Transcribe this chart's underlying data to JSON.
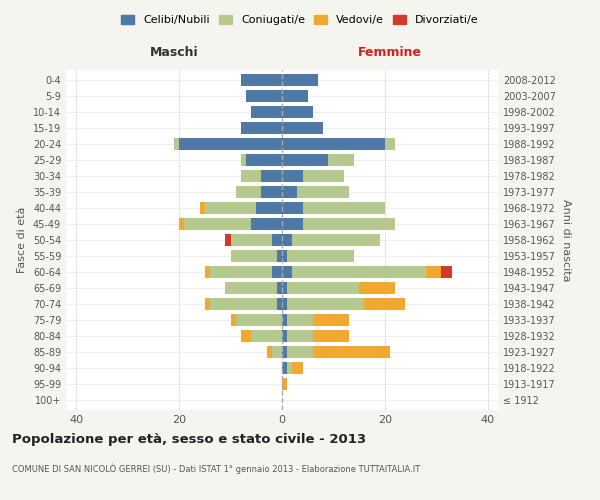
{
  "age_groups": [
    "100+",
    "95-99",
    "90-94",
    "85-89",
    "80-84",
    "75-79",
    "70-74",
    "65-69",
    "60-64",
    "55-59",
    "50-54",
    "45-49",
    "40-44",
    "35-39",
    "30-34",
    "25-29",
    "20-24",
    "15-19",
    "10-14",
    "5-9",
    "0-4"
  ],
  "birth_years": [
    "≤ 1912",
    "1913-1917",
    "1918-1922",
    "1923-1927",
    "1928-1932",
    "1933-1937",
    "1938-1942",
    "1943-1947",
    "1948-1952",
    "1953-1957",
    "1958-1962",
    "1963-1967",
    "1968-1972",
    "1973-1977",
    "1978-1982",
    "1983-1987",
    "1988-1992",
    "1993-1997",
    "1998-2002",
    "2003-2007",
    "2008-2012"
  ],
  "males": {
    "celibi": [
      0,
      0,
      0,
      0,
      0,
      0,
      1,
      1,
      2,
      1,
      2,
      6,
      5,
      4,
      4,
      7,
      20,
      8,
      6,
      7,
      8
    ],
    "coniugati": [
      0,
      0,
      0,
      2,
      6,
      9,
      13,
      10,
      12,
      9,
      8,
      13,
      10,
      5,
      4,
      1,
      1,
      0,
      0,
      0,
      0
    ],
    "vedovi": [
      0,
      0,
      0,
      1,
      2,
      1,
      1,
      0,
      1,
      0,
      0,
      1,
      1,
      0,
      0,
      0,
      0,
      0,
      0,
      0,
      0
    ],
    "divorziati": [
      0,
      0,
      0,
      0,
      0,
      0,
      0,
      0,
      0,
      0,
      1,
      0,
      0,
      0,
      0,
      0,
      0,
      0,
      0,
      0,
      0
    ]
  },
  "females": {
    "nubili": [
      0,
      0,
      1,
      1,
      1,
      1,
      1,
      1,
      2,
      1,
      2,
      4,
      4,
      3,
      4,
      9,
      20,
      8,
      6,
      5,
      7
    ],
    "coniugate": [
      0,
      0,
      1,
      5,
      5,
      5,
      15,
      14,
      26,
      13,
      17,
      18,
      16,
      10,
      8,
      5,
      2,
      0,
      0,
      0,
      0
    ],
    "vedove": [
      0,
      1,
      2,
      15,
      7,
      7,
      8,
      7,
      3,
      0,
      0,
      0,
      0,
      0,
      0,
      0,
      0,
      0,
      0,
      0,
      0
    ],
    "divorziate": [
      0,
      0,
      0,
      0,
      0,
      0,
      0,
      0,
      2,
      0,
      0,
      0,
      0,
      0,
      0,
      0,
      0,
      0,
      0,
      0,
      0
    ]
  },
  "colors": {
    "celibi_nubili": "#4e79a7",
    "coniugati": "#b5c98e",
    "vedovi": "#f0a830",
    "divorziati": "#d13b2a"
  },
  "xlim": 42,
  "xlabel_left": "Maschi",
  "xlabel_right": "Femmine",
  "ylabel_left": "Fasce di età",
  "ylabel_right": "Anni di nascita",
  "title": "Popolazione per età, sesso e stato civile - 2013",
  "subtitle": "COMUNE DI SAN NICOLÒ GERREI (SU) - Dati ISTAT 1° gennaio 2013 - Elaborazione TUTTAITALIA.IT",
  "legend_labels": [
    "Celibi/Nubili",
    "Coniugati/e",
    "Vedovi/e",
    "Divorziati/e"
  ],
  "bg_color": "#f5f5f0",
  "plot_bg": "#ffffff",
  "grid_color": "#cccccc"
}
